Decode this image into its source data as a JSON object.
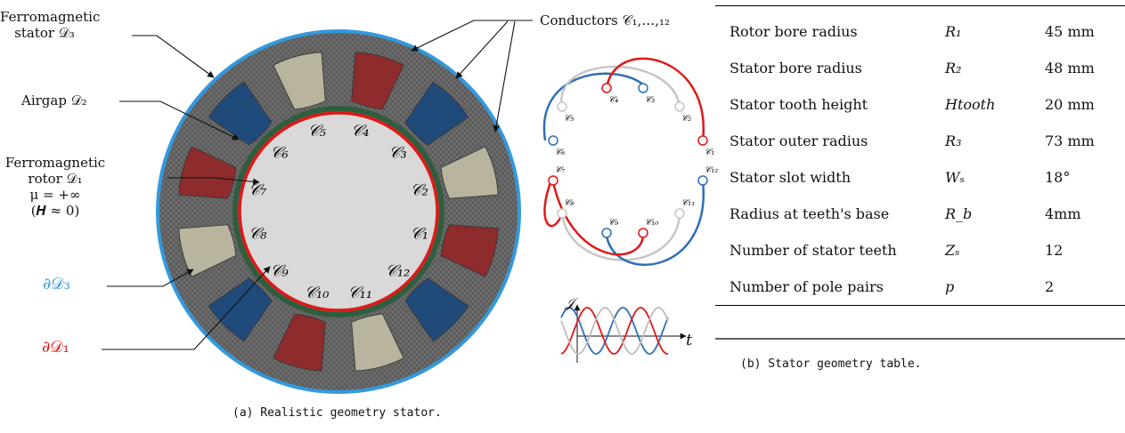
{
  "colors": {
    "blue": "#3399dd",
    "red": "#e01818",
    "coil_red": "#8e2b2c",
    "coil_blue": "#1f4a7a",
    "coil_tan": "#b8b49d",
    "mesh": "#6d6d6d",
    "bore": "#d9d9d9"
  },
  "panel_a": {
    "labels": {
      "stator_l1": "Ferromagnetic",
      "stator_l2": "stator 𝒟₃",
      "airgap": "Airgap 𝒟₂",
      "rotor_l1": "Ferromagnetic",
      "rotor_l2": "rotor 𝒟₁",
      "rotor_l3": "μ = +∞",
      "rotor_l4": "(𝑯 ≈ 0)",
      "boundary3": "∂𝒟₃",
      "boundary1": "∂𝒟₁",
      "conductors": "Conductors 𝒞₁,…,₁₂"
    },
    "conductor_labels": [
      "𝒞₁",
      "𝒞₂",
      "𝒞₃",
      "𝒞₄",
      "𝒞₅",
      "𝒞₆",
      "𝒞₇",
      "𝒞₈",
      "𝒞₉",
      "𝒞₁₀",
      "𝒞₁₁",
      "𝒞₁₂"
    ],
    "winding_labels_top": [
      "𝒞₆",
      "𝒞₅",
      "𝒞₄",
      "𝒞₃",
      "𝒞₂",
      "𝒞₁"
    ],
    "winding_labels_bottom": [
      "𝒞₇",
      "𝒞₈",
      "𝒞₉",
      "𝒞₁₀",
      "𝒞₁₁",
      "𝒞₁₂"
    ],
    "current_axis_y": "𝒥",
    "current_axis_x": "t",
    "caption": "(a) Realistic geometry stator."
  },
  "panel_b": {
    "rows": [
      {
        "label": "Rotor bore radius",
        "symbol": "R₁",
        "value": "45 mm"
      },
      {
        "label": "Stator bore radius",
        "symbol": "R₂",
        "value": "48 mm"
      },
      {
        "label": "Stator tooth height",
        "symbol": "Htooth",
        "value": "20 mm"
      },
      {
        "label": "Stator outer radius",
        "symbol": "R₃",
        "value": "73 mm"
      },
      {
        "label": "Stator slot width",
        "symbol": "Wₛ",
        "value": "18°"
      },
      {
        "label": "Radius at teeth's base",
        "symbol": "R_b",
        "value": "4mm"
      },
      {
        "label": "Number of stator teeth",
        "symbol": "Zₛ",
        "value": "12"
      },
      {
        "label": "Number of pole pairs",
        "symbol": "p",
        "value": "2"
      }
    ],
    "caption": "(b) Stator geometry table."
  }
}
